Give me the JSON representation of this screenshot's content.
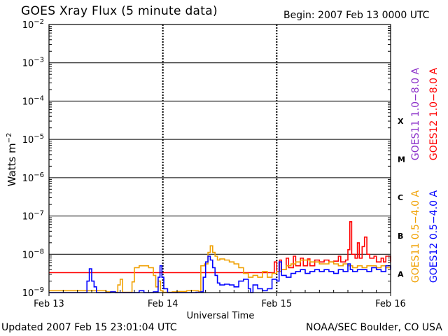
{
  "header": {
    "title": "GOES Xray Flux (5 minute data)",
    "begin": "Begin:  2007 Feb 13 0000 UTC"
  },
  "footer": {
    "updated": "Updated 2007 Feb 15 23:01:04 UTC",
    "source": "NOAA/SEC Boulder, CO USA"
  },
  "chart_data": {
    "type": "line",
    "title": "GOES Xray Flux (5 minute data)",
    "xlabel": "Universal Time",
    "ylabel": "Watts m-2",
    "yscale": "log",
    "ylim": [
      1e-09,
      0.01
    ],
    "xlim": [
      0,
      72
    ],
    "x_unit": "hours since 2007 Feb 13 0000 UTC",
    "x_ticks": [
      {
        "x": 0,
        "label": "Feb 13"
      },
      {
        "x": 24,
        "label": "Feb 14"
      },
      {
        "x": 48,
        "label": "Feb 15"
      },
      {
        "x": 72,
        "label": "Feb 16"
      }
    ],
    "y_ticks": [
      {
        "exp": -2,
        "label": "10",
        "sup": "−2"
      },
      {
        "exp": -3,
        "label": "10",
        "sup": "−3"
      },
      {
        "exp": -4,
        "label": "10",
        "sup": "−4"
      },
      {
        "exp": -5,
        "label": "10",
        "sup": "−5"
      },
      {
        "exp": -6,
        "label": "10",
        "sup": "−6"
      },
      {
        "exp": -7,
        "label": "10",
        "sup": "−7"
      },
      {
        "exp": -8,
        "label": "10",
        "sup": "−8"
      },
      {
        "exp": -9,
        "label": "10",
        "sup": "−9"
      }
    ],
    "flare_classes": [
      {
        "label": "X",
        "exp": -4.5
      },
      {
        "label": "M",
        "exp": -5.5
      },
      {
        "label": "C",
        "exp": -6.5
      },
      {
        "label": "B",
        "exp": -7.5
      },
      {
        "label": "A",
        "exp": -8.5
      }
    ],
    "grid": true,
    "legend": "right (rotated)",
    "series": [
      {
        "name": "GOES11 1.0−8.0 A",
        "color": "#8b2fc9",
        "points": []
      },
      {
        "name": "GOES12 1.0−8.0 A",
        "color": "#ff0000",
        "points": [
          [
            0,
            -8.48
          ],
          [
            20,
            -8.48
          ],
          [
            40,
            -8.48
          ],
          [
            47,
            -8.48
          ],
          [
            47.5,
            -8.2
          ],
          [
            48,
            -8.45
          ],
          [
            48.6,
            -8.15
          ],
          [
            49,
            -8.4
          ],
          [
            50,
            -8.1
          ],
          [
            50.5,
            -8.35
          ],
          [
            51.5,
            -8.05
          ],
          [
            52,
            -8.3
          ],
          [
            53,
            -8.1
          ],
          [
            53.6,
            -8.3
          ],
          [
            54.5,
            -8.12
          ],
          [
            55,
            -8.3
          ],
          [
            56,
            -8.15
          ],
          [
            57,
            -8.2
          ],
          [
            58,
            -8.15
          ],
          [
            59,
            -8.2
          ],
          [
            60,
            -8.18
          ],
          [
            61,
            -8.05
          ],
          [
            61.5,
            -8.2
          ],
          [
            62.5,
            -8.15
          ],
          [
            63,
            -7.88
          ],
          [
            63.4,
            -7.15
          ],
          [
            63.8,
            -8.0
          ],
          [
            64.5,
            -8.1
          ],
          [
            65,
            -7.7
          ],
          [
            65.4,
            -8.1
          ],
          [
            66,
            -7.8
          ],
          [
            66.5,
            -7.55
          ],
          [
            67,
            -8.0
          ],
          [
            67.6,
            -8.1
          ],
          [
            68.5,
            -8.05
          ],
          [
            69,
            -8.2
          ],
          [
            70,
            -8.1
          ],
          [
            70.5,
            -8.2
          ],
          [
            71,
            -8.05
          ],
          [
            72,
            -8.2
          ]
        ]
      },
      {
        "name": "GOES11 0.5−4.0 A",
        "color": "#f0a000",
        "points": [
          [
            0,
            -8.95
          ],
          [
            4,
            -8.95
          ],
          [
            8,
            -8.95
          ],
          [
            12,
            -8.98
          ],
          [
            14,
            -8.99
          ],
          [
            14.5,
            -8.8
          ],
          [
            15,
            -8.65
          ],
          [
            15.5,
            -8.99
          ],
          [
            17,
            -8.99
          ],
          [
            17.5,
            -8.72
          ],
          [
            18,
            -8.35
          ],
          [
            19,
            -8.3
          ],
          [
            21,
            -8.35
          ],
          [
            22,
            -8.55
          ],
          [
            22.5,
            -8.85
          ],
          [
            23,
            -8.7
          ],
          [
            23.5,
            -8.95
          ],
          [
            24,
            -8.99
          ],
          [
            25,
            -8.99
          ],
          [
            26,
            -8.98
          ],
          [
            27,
            -8.97
          ],
          [
            28,
            -8.97
          ],
          [
            29,
            -8.95
          ],
          [
            30,
            -8.95
          ],
          [
            31.5,
            -8.97
          ],
          [
            32,
            -8.3
          ],
          [
            32.8,
            -8.25
          ],
          [
            33.5,
            -7.95
          ],
          [
            34,
            -7.78
          ],
          [
            34.5,
            -7.95
          ],
          [
            35,
            -8.05
          ],
          [
            35.5,
            -8.15
          ],
          [
            36,
            -8.12
          ],
          [
            37,
            -8.15
          ],
          [
            38,
            -8.2
          ],
          [
            39,
            -8.25
          ],
          [
            40,
            -8.35
          ],
          [
            41,
            -8.5
          ],
          [
            42,
            -8.6
          ],
          [
            43,
            -8.55
          ],
          [
            44,
            -8.6
          ],
          [
            45,
            -8.45
          ],
          [
            46,
            -8.6
          ],
          [
            47,
            -8.5
          ],
          [
            48,
            -8.45
          ],
          [
            49,
            -8.4
          ],
          [
            50,
            -8.3
          ],
          [
            51,
            -8.25
          ],
          [
            52,
            -8.2
          ],
          [
            53,
            -8.15
          ],
          [
            54,
            -8.15
          ],
          [
            55,
            -8.2
          ],
          [
            56,
            -8.2
          ],
          [
            57,
            -8.25
          ],
          [
            58,
            -8.25
          ],
          [
            59,
            -8.2
          ],
          [
            60,
            -8.25
          ],
          [
            61,
            -8.3
          ],
          [
            62,
            -8.25
          ],
          [
            63,
            -8.3
          ],
          [
            64,
            -8.35
          ],
          [
            65,
            -8.3
          ],
          [
            66,
            -8.35
          ],
          [
            67,
            -8.3
          ],
          [
            68,
            -8.3
          ],
          [
            69,
            -8.35
          ],
          [
            70,
            -8.3
          ],
          [
            71,
            -8.35
          ],
          [
            72,
            -8.3
          ]
        ]
      },
      {
        "name": "GOES12 0.5−4.0 A",
        "color": "#0000ff",
        "points": [
          [
            0,
            -9.0
          ],
          [
            3,
            -9.0
          ],
          [
            6,
            -9.0
          ],
          [
            7.5,
            -9.0
          ],
          [
            8,
            -8.7
          ],
          [
            8.5,
            -8.38
          ],
          [
            9,
            -8.7
          ],
          [
            9.5,
            -8.85
          ],
          [
            10,
            -9.0
          ],
          [
            12,
            -9.0
          ],
          [
            13,
            -8.98
          ],
          [
            14,
            -9.0
          ],
          [
            16,
            -9.0
          ],
          [
            17,
            -9.0
          ],
          [
            18,
            -9.0
          ],
          [
            19,
            -8.95
          ],
          [
            20,
            -9.0
          ],
          [
            21,
            -9.0
          ],
          [
            22,
            -8.98
          ],
          [
            23,
            -8.6
          ],
          [
            23.4,
            -8.3
          ],
          [
            23.8,
            -8.6
          ],
          [
            24.2,
            -8.9
          ],
          [
            25,
            -9.0
          ],
          [
            27,
            -9.0
          ],
          [
            28,
            -9.0
          ],
          [
            30,
            -9.0
          ],
          [
            31,
            -8.99
          ],
          [
            32,
            -8.98
          ],
          [
            32.5,
            -8.6
          ],
          [
            33,
            -8.2
          ],
          [
            33.5,
            -8.05
          ],
          [
            34,
            -8.15
          ],
          [
            34.5,
            -8.35
          ],
          [
            35,
            -8.55
          ],
          [
            35.5,
            -8.75
          ],
          [
            36,
            -8.8
          ],
          [
            37,
            -8.78
          ],
          [
            38,
            -8.8
          ],
          [
            39,
            -8.85
          ],
          [
            40,
            -8.7
          ],
          [
            41,
            -8.65
          ],
          [
            42,
            -8.9
          ],
          [
            42.5,
            -9.0
          ],
          [
            43,
            -8.8
          ],
          [
            44,
            -8.9
          ],
          [
            45,
            -8.95
          ],
          [
            46,
            -8.9
          ],
          [
            47,
            -8.65
          ],
          [
            48,
            -8.7
          ],
          [
            48.5,
            -8.2
          ],
          [
            49,
            -8.55
          ],
          [
            50,
            -8.6
          ],
          [
            51,
            -8.5
          ],
          [
            52,
            -8.45
          ],
          [
            53,
            -8.4
          ],
          [
            54,
            -8.5
          ],
          [
            55,
            -8.45
          ],
          [
            56,
            -8.4
          ],
          [
            57,
            -8.45
          ],
          [
            58,
            -8.4
          ],
          [
            59,
            -8.45
          ],
          [
            60,
            -8.5
          ],
          [
            61,
            -8.4
          ],
          [
            62,
            -8.45
          ],
          [
            63,
            -8.25
          ],
          [
            63.5,
            -8.4
          ],
          [
            64,
            -8.45
          ],
          [
            65,
            -8.4
          ],
          [
            66,
            -8.4
          ],
          [
            67,
            -8.45
          ],
          [
            68,
            -8.35
          ],
          [
            69,
            -8.4
          ],
          [
            70,
            -8.45
          ],
          [
            71,
            -8.3
          ],
          [
            72,
            -8.4
          ]
        ]
      }
    ]
  }
}
